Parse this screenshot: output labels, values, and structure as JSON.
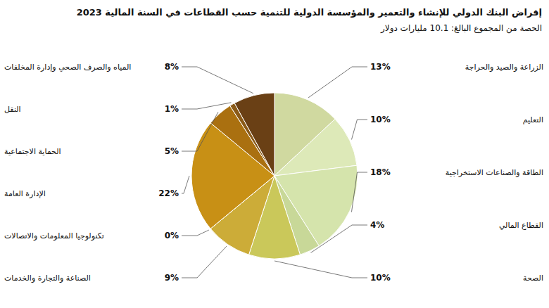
{
  "chart_data": {
    "type": "pie",
    "title": "إقراض البنك الدولي للإنشاء والتعمير والمؤسسة الدولية للتنمية حسب القطاعات في السنة المالية 2023",
    "subtitle": "الحصة من المجموع البالغ: 10.1 مليارات دولار",
    "categories": [
      "الزراعة والصيد والحراجة",
      "التعليم",
      "الطاقة والصناعات الاستخراجية",
      "القطاع المالي",
      "الصحة",
      "الصناعة والتجارة والخدمات",
      "تكنولوجيا المعلومات والاتصالات",
      "الإدارة العامة",
      "الحماية الاجتماعية",
      "النقل",
      "المياه والصرف الصحي وإدارة المخلفات"
    ],
    "values": [
      13,
      10,
      18,
      4,
      10,
      9,
      0,
      22,
      5,
      1,
      8
    ],
    "value_labels": [
      "13%",
      "10%",
      "18%",
      "4%",
      "10%",
      "9%",
      "0%",
      "22%",
      "5%",
      "1%",
      "8%"
    ],
    "colors": [
      "#d0d9a0",
      "#dde9b8",
      "#d5e4ac",
      "#c8d898",
      "#cac85a",
      "#ccac38",
      "#c09820",
      "#c89015",
      "#aa7010",
      "#8a5a18",
      "#6a4015"
    ],
    "data_labels": true
  }
}
